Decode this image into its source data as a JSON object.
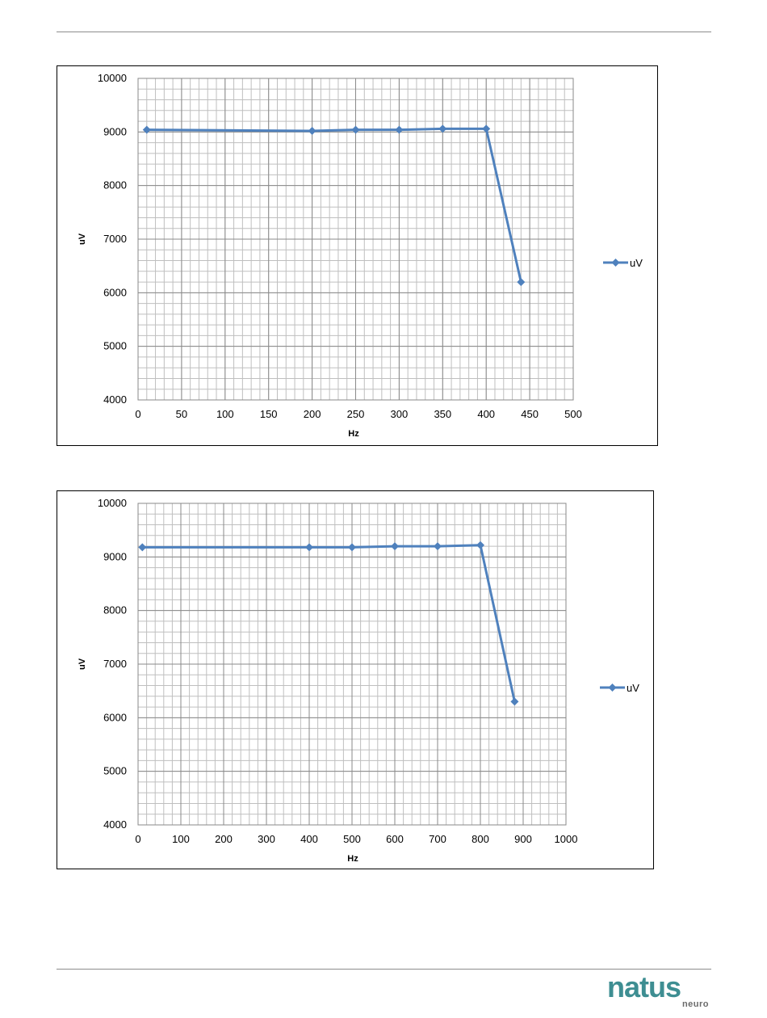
{
  "logo": {
    "word": "natus",
    "sub": "neuro"
  },
  "chart_data": [
    {
      "type": "line",
      "xlabel": "Hz",
      "ylabel": "uV",
      "xlim": [
        0,
        500
      ],
      "ylim": [
        4000,
        10000
      ],
      "x_ticks": [
        0,
        50,
        100,
        150,
        200,
        250,
        300,
        350,
        400,
        450,
        500
      ],
      "y_ticks": [
        4000,
        5000,
        6000,
        7000,
        8000,
        9000,
        10000
      ],
      "x_minor_step": 10,
      "y_minor_step": 200,
      "grid": true,
      "legend_position": "right",
      "color": "#4f81bd",
      "series": [
        {
          "name": "uV",
          "x": [
            10,
            200,
            250,
            300,
            350,
            400,
            440
          ],
          "y": [
            9040,
            9020,
            9040,
            9040,
            9060,
            9060,
            6200
          ]
        }
      ]
    },
    {
      "type": "line",
      "xlabel": "Hz",
      "ylabel": "uV",
      "xlim": [
        0,
        1000
      ],
      "ylim": [
        4000,
        10000
      ],
      "x_ticks": [
        0,
        100,
        200,
        300,
        400,
        500,
        600,
        700,
        800,
        900,
        1000
      ],
      "y_ticks": [
        4000,
        5000,
        6000,
        7000,
        8000,
        9000,
        10000
      ],
      "x_minor_step": 20,
      "y_minor_step": 200,
      "grid": true,
      "legend_position": "right",
      "color": "#4f81bd",
      "series": [
        {
          "name": "uV",
          "x": [
            10,
            400,
            500,
            600,
            700,
            800,
            880
          ],
          "y": [
            9180,
            9180,
            9180,
            9200,
            9200,
            9220,
            6300
          ]
        }
      ]
    }
  ]
}
